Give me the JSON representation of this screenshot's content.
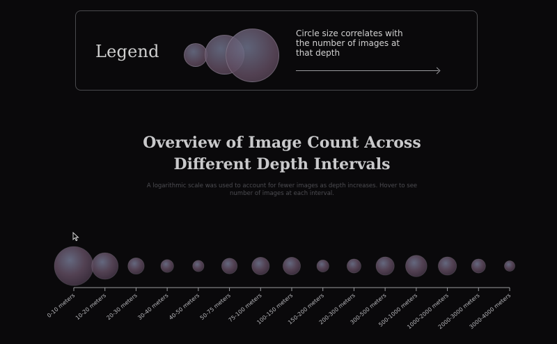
{
  "legend": {
    "title": "Legend",
    "description": "Circle size correlates with the number of images at that depth"
  },
  "header": {
    "title_line1": "Overview of Image Count Across",
    "title_line2": "Different Depth Intervals",
    "subtitle": "A logarithmic scale was used to account for fewer images as depth increases. Hover to see number of images at each interval."
  },
  "icons": {
    "cursor": "mouse-pointer-icon",
    "arrow": "arrow-right-icon"
  },
  "colors": {
    "background": "#0a090b",
    "bubble_core": "#6e738c",
    "bubble_edge": "#5f4b5f",
    "axis": "#9a9a9e"
  },
  "chart_data": {
    "type": "scatter",
    "encoding": "bubble size (logarithmic scale) = number of images",
    "categories": [
      "0-10 meters",
      "10-20 meters",
      "20-30 meters",
      "30-40 meters",
      "40-50 meters",
      "50-75 meters",
      "75-100 meters",
      "100-150 meters",
      "150-200 meters",
      "200-300 meters",
      "300-500 meters",
      "500-1000 meters",
      "1000-2000 meters",
      "2000-3000 meters",
      "3000-4000 meters"
    ],
    "relative_size": [
      1.0,
      0.68,
      0.42,
      0.33,
      0.29,
      0.4,
      0.45,
      0.45,
      0.31,
      0.36,
      0.47,
      0.55,
      0.47,
      0.36,
      0.27
    ],
    "title": "Overview of Image Count Across Different Depth Intervals",
    "xlabel": "",
    "ylabel": "",
    "grid": false,
    "legend_placement": "top"
  }
}
